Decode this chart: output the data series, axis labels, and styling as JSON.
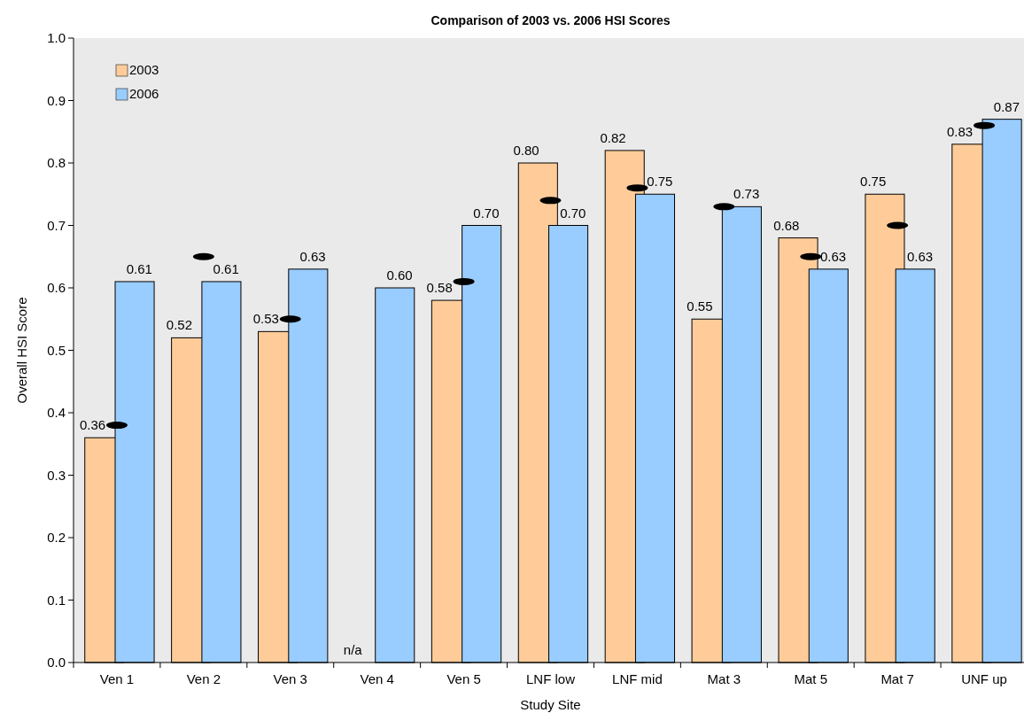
{
  "chart_data": {
    "type": "bar",
    "title": "Comparison of 2003 vs. 2006 HSI Scores",
    "xlabel": "Study Site",
    "ylabel": "Overall HSI Score",
    "categories": [
      "Ven 1",
      "Ven 2",
      "Ven 3",
      "Ven 4",
      "Ven 5",
      "LNF low",
      "LNF mid",
      "Mat 3",
      "Mat 5",
      "Mat 7",
      "UNF up"
    ],
    "series": [
      {
        "name": "2003",
        "color": "#ffcc99",
        "values": [
          0.36,
          0.52,
          0.53,
          null,
          0.58,
          0.8,
          0.82,
          0.55,
          0.68,
          0.75,
          0.83
        ],
        "value_labels": [
          "0.36",
          "0.52",
          "0.53",
          "n/a",
          "0.58",
          "0.80",
          "0.82",
          "0.55",
          "0.68",
          "0.75",
          "0.83"
        ]
      },
      {
        "name": "2006",
        "color": "#99ccff",
        "values": [
          0.61,
          0.61,
          0.63,
          0.6,
          0.7,
          0.7,
          0.75,
          0.73,
          0.63,
          0.63,
          0.87
        ],
        "value_labels": [
          "0.61",
          "0.61",
          "0.63",
          "0.60",
          "0.70",
          "0.70",
          "0.75",
          "0.73",
          "0.63",
          "0.63",
          "0.87"
        ]
      },
      {
        "type": "scatter",
        "color": "#000000",
        "x": [
          "Ven 1",
          "Ven 2",
          "Ven 3",
          "Ven 5",
          "LNF low",
          "LNF mid",
          "Mat 3",
          "Mat 5",
          "Mat 7",
          "UNF up"
        ],
        "values": [
          0.38,
          0.65,
          0.55,
          0.61,
          0.74,
          0.76,
          0.73,
          0.65,
          0.7,
          0.86
        ]
      }
    ],
    "ylim": [
      0,
      1
    ],
    "yticks": [
      {
        "value": 0,
        "label": "0.0"
      },
      0.1,
      0.2,
      0.3,
      0.4,
      0.5,
      0.6,
      0.7,
      0.8,
      0.9,
      {
        "value": 1,
        "label": "1.0"
      }
    ],
    "grid": false,
    "legend": "top left"
  }
}
